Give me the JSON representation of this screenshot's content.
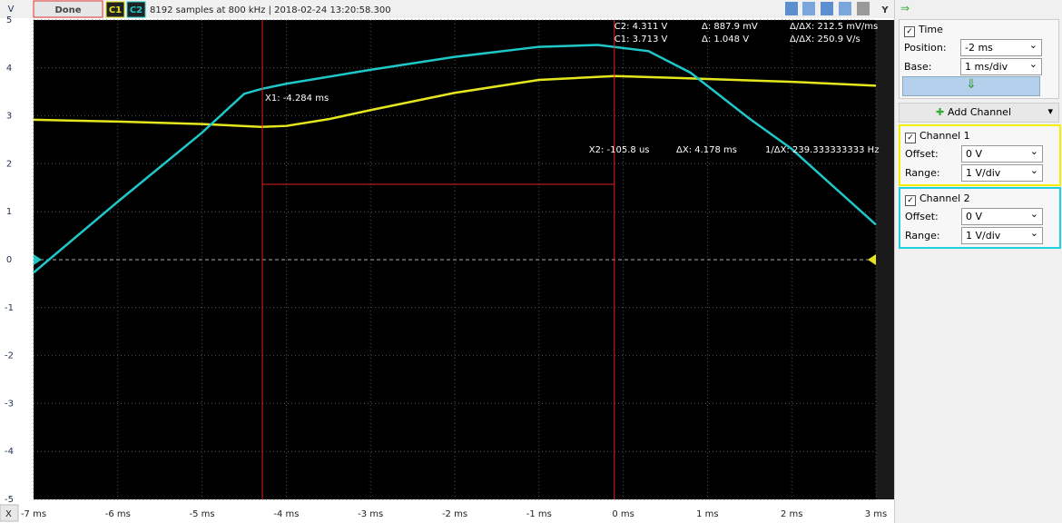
{
  "toolbar": {
    "button": "Done",
    "info": "8192 samples at 800 kHz | 2018-02-24 13:20:58.300",
    "y_button": "Y"
  },
  "measurements": {
    "c2": "C2: 4.311 V",
    "c1": "C1: 3.713 V",
    "delta_a": "Δ: 887.9 mV",
    "delta_b": "Δ: 1.048 V",
    "slope_a": "Δ/ΔX: 212.5 mV/ms",
    "slope_b": "Δ/ΔX: 250.9 V/s"
  },
  "cursors": [
    {
      "label": "X1: -4.284 ms",
      "position": -4.284
    },
    {
      "label": "X2: -105.8 us",
      "position": -0.1058,
      "delta": "ΔX: 4.178 ms",
      "inverse": "1/ΔX: 239.333333333 Hz"
    }
  ],
  "plot": {
    "y_unit": "V",
    "x_axis": "X",
    "xlim": [
      -7,
      3
    ],
    "ylim": [
      -5,
      5
    ],
    "xticks": [
      {
        "value": -7,
        "label": "-7 ms"
      },
      {
        "value": -6,
        "label": "-6 ms"
      },
      {
        "value": -5,
        "label": "-5 ms"
      },
      {
        "value": -4,
        "label": "-4 ms"
      },
      {
        "value": -3,
        "label": "-3 ms"
      },
      {
        "value": -2,
        "label": "-2 ms"
      },
      {
        "value": -1,
        "label": "-1 ms"
      },
      {
        "value": 0,
        "label": "0 ms"
      },
      {
        "value": 1,
        "label": "1 ms"
      },
      {
        "value": 2,
        "label": "2 ms"
      },
      {
        "value": 3,
        "label": "3 ms"
      }
    ],
    "yticks": [
      5,
      4,
      3,
      2,
      1,
      0,
      -1,
      -2,
      -3,
      -4,
      -5
    ],
    "traces": [
      {
        "name": "C1",
        "color": "#e6e61e",
        "x": [
          -7,
          -6,
          -5,
          -4.3,
          -4,
          -3.5,
          -3,
          -2,
          -1,
          -0.1,
          1,
          2,
          3
        ],
        "y": [
          2.92,
          2.88,
          2.83,
          2.77,
          2.79,
          2.93,
          3.12,
          3.48,
          3.75,
          3.83,
          3.77,
          3.71,
          3.63
        ]
      },
      {
        "name": "C2",
        "color": "#1ec8c8",
        "x": [
          -7,
          -6,
          -5,
          -4.5,
          -4.3,
          -4,
          -3,
          -2,
          -1,
          -0.3,
          0.3,
          0.8,
          1.5,
          2,
          3
        ],
        "y": [
          -0.27,
          1.21,
          2.65,
          3.46,
          3.56,
          3.67,
          3.96,
          4.23,
          4.44,
          4.48,
          4.35,
          3.9,
          2.94,
          2.31,
          0.73
        ]
      }
    ]
  },
  "panel": {
    "time": {
      "title": "Time",
      "position_label": "Position:",
      "position": "-2 ms",
      "base_label": "Base:",
      "base": "1 ms/div"
    },
    "add_channel": "Add Channel",
    "channels": [
      {
        "title": "Channel 1",
        "offset_label": "Offset:",
        "offset": "0 V",
        "range_label": "Range:",
        "range": "1 V/div"
      },
      {
        "title": "Channel 2",
        "offset_label": "Offset:",
        "offset": "0 V",
        "range_label": "Range:",
        "range": "1 V/div"
      }
    ]
  }
}
